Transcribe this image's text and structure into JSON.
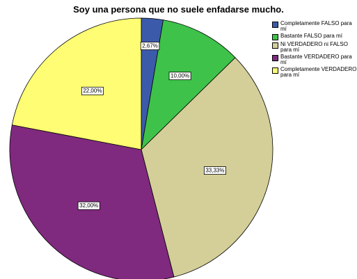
{
  "chart_data": {
    "type": "pie",
    "title": "Soy una persona que no suele enfadarse mucho.",
    "categories": [
      "Completamente FALSO para mí",
      "Bastante FALSO para mí",
      "Ni VERDADERO ni FALSO para mí",
      "Bastante VERDADERO para mí",
      "Completamente VERDADERO para mí"
    ],
    "values": [
      2.67,
      10.0,
      33.33,
      32.0,
      22.0
    ],
    "data_labels": [
      "2,67%",
      "10,00%",
      "33,33%",
      "32,00%",
      "22,00%"
    ],
    "colors": [
      "#3c5aaa",
      "#3ec24a",
      "#d4cf98",
      "#7f2a7e",
      "#fefd73"
    ],
    "legend_position": "top-right"
  }
}
